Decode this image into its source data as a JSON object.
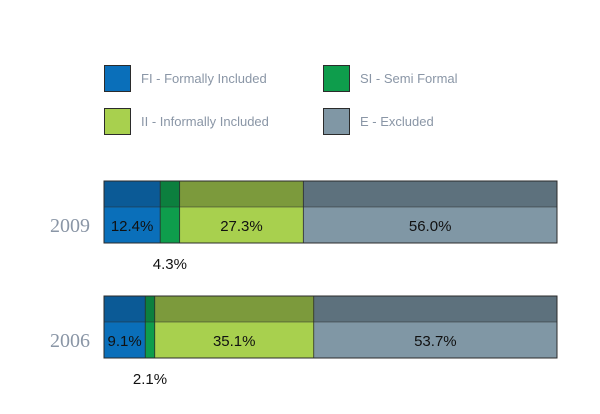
{
  "chart_data": {
    "type": "bar",
    "orientation": "horizontal",
    "stacked": true,
    "title": "",
    "xlabel": "",
    "ylabel": "",
    "xlim": [
      0,
      100
    ],
    "grid": false,
    "legend_position": "top",
    "categories": [
      "2009",
      "2006"
    ],
    "series": [
      {
        "name": "FI - Formally Included",
        "color": "#0a6fba",
        "shade": "#0b5a96",
        "values": [
          12.4,
          9.1
        ],
        "labels": [
          "12.4%",
          "9.1%"
        ],
        "label_position": "inside"
      },
      {
        "name": "SI - Semi Formal",
        "color": "#0e9d4c",
        "shade": "#0c7f3e",
        "values": [
          4.3,
          2.1
        ],
        "labels": [
          "4.3%",
          "2.1%"
        ],
        "label_position": "below"
      },
      {
        "name": "II - Informally Included",
        "color": "#a8d04e",
        "shade": "#7c9a3c",
        "values": [
          27.3,
          35.1
        ],
        "labels": [
          "27.3%",
          "35.1%"
        ],
        "label_position": "inside"
      },
      {
        "name": "E - Excluded",
        "color": "#8097a5",
        "shade": "#5d717d",
        "values": [
          56.0,
          53.7
        ],
        "labels": [
          "56.0%",
          "53.7%"
        ],
        "label_position": "inside"
      }
    ]
  }
}
